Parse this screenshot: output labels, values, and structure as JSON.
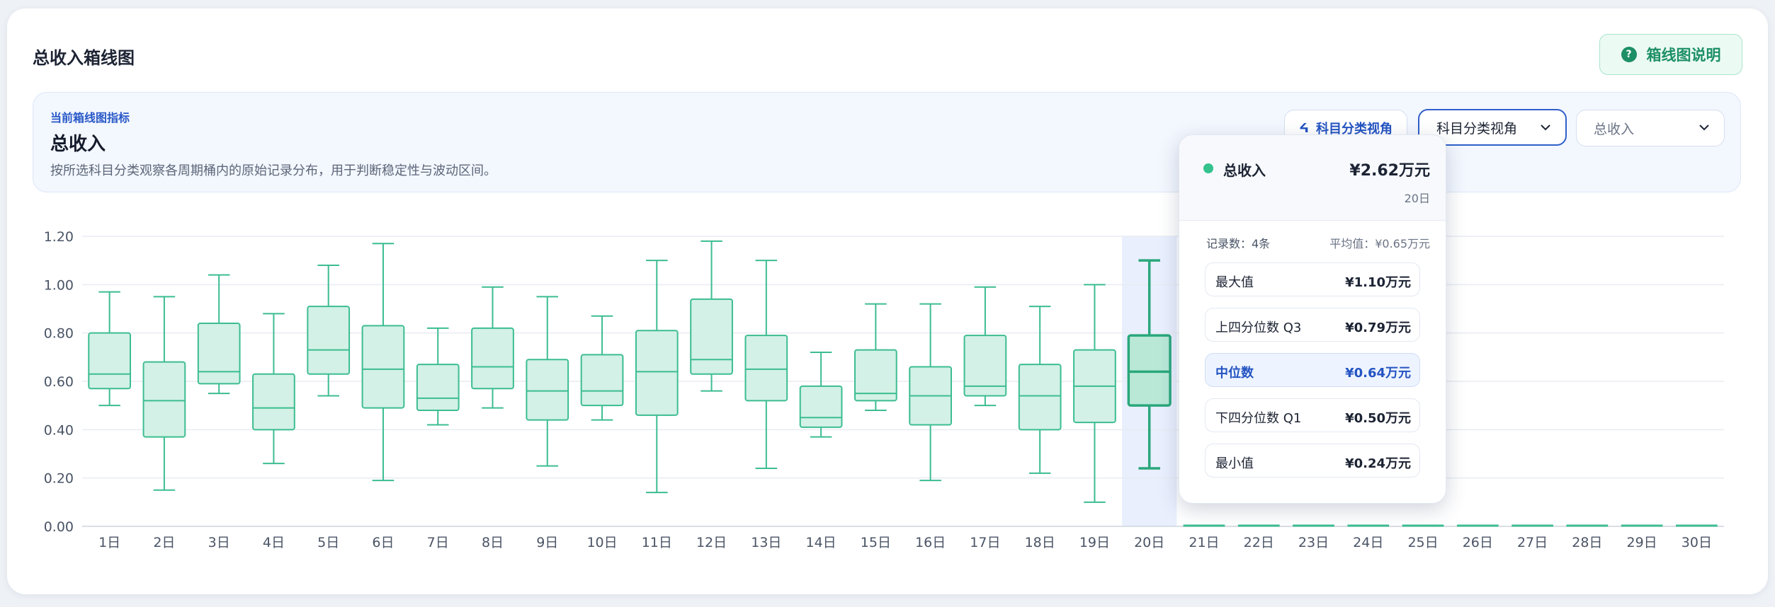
{
  "card": {
    "title": "总收入箱线图",
    "help_label": "箱线图说明",
    "help_icon": "?"
  },
  "info": {
    "eyebrow": "当前箱线图指标",
    "title": "总收入",
    "description": "按所选科目分类观察各周期桶内的原始记录分布，用于判断稳定性与波动区间。",
    "chip_label": "科目分类视角",
    "chip_icon": "ᔦ",
    "select_view": "科目分类视角",
    "select_metric": "总收入"
  },
  "tooltip": {
    "metric": "总收入",
    "total": "¥2.62万元",
    "day": "20日",
    "count_text": "记录数：4条",
    "mean_text": "平均值：¥0.65万元",
    "rows": [
      {
        "label": "最大值",
        "value": "¥1.10万元"
      },
      {
        "label": "上四分位数 Q3",
        "value": "¥0.79万元"
      },
      {
        "label": "中位数",
        "value": "¥0.64万元"
      },
      {
        "label": "下四分位数 Q1",
        "value": "¥0.50万元"
      },
      {
        "label": "最小值",
        "value": "¥0.24万元"
      }
    ]
  },
  "chart_data": {
    "type": "boxplot",
    "ylim": [
      0,
      1.2
    ],
    "yticks": [
      "0.00",
      "0.20",
      "0.40",
      "0.60",
      "0.80",
      "1.00",
      "1.20"
    ],
    "categories": [
      "1日",
      "2日",
      "3日",
      "4日",
      "5日",
      "6日",
      "7日",
      "8日",
      "9日",
      "10日",
      "11日",
      "12日",
      "13日",
      "14日",
      "15日",
      "16日",
      "17日",
      "18日",
      "19日",
      "20日",
      "21日",
      "22日",
      "23日",
      "24日",
      "25日",
      "26日",
      "27日",
      "28日",
      "29日",
      "30日"
    ],
    "highlight": "20日",
    "colors": {
      "stroke": "#3cbd91",
      "fill": "#d3f1e6",
      "highlight_fill": "#b9e8d7",
      "highlight_stroke": "#2aa77c",
      "highlight_band": "#e9effd"
    },
    "boxes": [
      {
        "min": 0.5,
        "q1": 0.57,
        "median": 0.63,
        "q3": 0.8,
        "max": 0.97
      },
      {
        "min": 0.15,
        "q1": 0.37,
        "median": 0.52,
        "q3": 0.68,
        "max": 0.95
      },
      {
        "min": 0.55,
        "q1": 0.59,
        "median": 0.64,
        "q3": 0.84,
        "max": 1.04
      },
      {
        "min": 0.26,
        "q1": 0.4,
        "median": 0.49,
        "q3": 0.63,
        "max": 0.88
      },
      {
        "min": 0.54,
        "q1": 0.63,
        "median": 0.73,
        "q3": 0.91,
        "max": 1.08
      },
      {
        "min": 0.19,
        "q1": 0.49,
        "median": 0.65,
        "q3": 0.83,
        "max": 1.17
      },
      {
        "min": 0.42,
        "q1": 0.48,
        "median": 0.53,
        "q3": 0.67,
        "max": 0.82
      },
      {
        "min": 0.49,
        "q1": 0.57,
        "median": 0.66,
        "q3": 0.82,
        "max": 0.99
      },
      {
        "min": 0.25,
        "q1": 0.44,
        "median": 0.56,
        "q3": 0.69,
        "max": 0.95
      },
      {
        "min": 0.44,
        "q1": 0.5,
        "median": 0.56,
        "q3": 0.71,
        "max": 0.87
      },
      {
        "min": 0.14,
        "q1": 0.46,
        "median": 0.64,
        "q3": 0.81,
        "max": 1.1
      },
      {
        "min": 0.56,
        "q1": 0.63,
        "median": 0.69,
        "q3": 0.94,
        "max": 1.18
      },
      {
        "min": 0.24,
        "q1": 0.52,
        "median": 0.65,
        "q3": 0.79,
        "max": 1.1
      },
      {
        "min": 0.37,
        "q1": 0.41,
        "median": 0.45,
        "q3": 0.58,
        "max": 0.72
      },
      {
        "min": 0.48,
        "q1": 0.52,
        "median": 0.55,
        "q3": 0.73,
        "max": 0.92
      },
      {
        "min": 0.19,
        "q1": 0.42,
        "median": 0.54,
        "q3": 0.66,
        "max": 0.92
      },
      {
        "min": 0.5,
        "q1": 0.54,
        "median": 0.58,
        "q3": 0.79,
        "max": 0.99
      },
      {
        "min": 0.22,
        "q1": 0.4,
        "median": 0.54,
        "q3": 0.67,
        "max": 0.91
      },
      {
        "min": 0.1,
        "q1": 0.43,
        "median": 0.58,
        "q3": 0.73,
        "max": 1.0
      },
      {
        "min": 0.24,
        "q1": 0.5,
        "median": 0.64,
        "q3": 0.79,
        "max": 1.1
      },
      {
        "min": 0,
        "q1": 0,
        "median": 0,
        "q3": 0,
        "max": 0
      },
      {
        "min": 0,
        "q1": 0,
        "median": 0,
        "q3": 0,
        "max": 0
      },
      {
        "min": 0,
        "q1": 0,
        "median": 0,
        "q3": 0,
        "max": 0
      },
      {
        "min": 0,
        "q1": 0,
        "median": 0,
        "q3": 0,
        "max": 0
      },
      {
        "min": 0,
        "q1": 0,
        "median": 0,
        "q3": 0,
        "max": 0
      },
      {
        "min": 0,
        "q1": 0,
        "median": 0,
        "q3": 0,
        "max": 0
      },
      {
        "min": 0,
        "q1": 0,
        "median": 0,
        "q3": 0,
        "max": 0
      },
      {
        "min": 0,
        "q1": 0,
        "median": 0,
        "q3": 0,
        "max": 0
      },
      {
        "min": 0,
        "q1": 0,
        "median": 0,
        "q3": 0,
        "max": 0
      },
      {
        "min": 0,
        "q1": 0,
        "median": 0,
        "q3": 0,
        "max": 0
      }
    ]
  }
}
